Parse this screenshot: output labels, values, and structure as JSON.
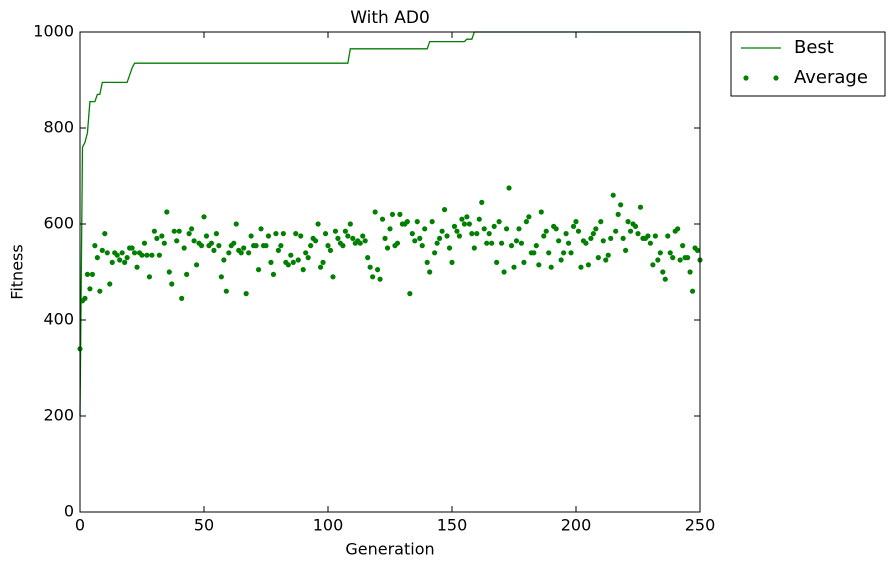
{
  "chart_data": {
    "type": "line",
    "title": "With AD0",
    "x_label": "Generation",
    "y_label": "Fitness",
    "xlim": [
      0,
      250
    ],
    "xticks": [
      0,
      50,
      100,
      150,
      200,
      250
    ],
    "ylim": [
      0,
      1000
    ],
    "yticks": [
      0,
      200,
      400,
      600,
      800,
      1000
    ],
    "grid": false,
    "legend": "outside-upper-right",
    "series": [
      {
        "name": "Best",
        "color": "#007f00",
        "style": "line",
        "x": [
          0,
          1,
          2,
          3,
          4,
          6,
          7,
          8,
          9,
          19,
          20,
          21,
          22,
          108,
          109,
          140,
          141,
          155,
          156,
          158,
          159,
          250
        ],
        "values": [
          200,
          760,
          770,
          790,
          855,
          855,
          870,
          870,
          895,
          895,
          910,
          925,
          935,
          935,
          965,
          965,
          980,
          980,
          985,
          985,
          1000,
          1000
        ]
      },
      {
        "name": "Average",
        "color": "#007f00",
        "style": "points",
        "x": [
          0,
          1,
          2,
          3,
          4,
          5,
          6,
          7,
          8,
          9,
          10,
          11,
          12,
          13,
          14,
          15,
          16,
          17,
          18,
          19,
          20,
          21,
          22,
          23,
          24,
          25,
          26,
          27,
          28,
          29,
          30,
          31,
          32,
          33,
          34,
          35,
          36,
          37,
          38,
          39,
          40,
          41,
          42,
          43,
          44,
          45,
          46,
          47,
          48,
          49,
          50,
          51,
          52,
          53,
          54,
          55,
          56,
          57,
          58,
          59,
          60,
          61,
          62,
          63,
          64,
          65,
          66,
          67,
          68,
          69,
          70,
          71,
          72,
          73,
          74,
          75,
          76,
          77,
          78,
          79,
          80,
          81,
          82,
          83,
          84,
          85,
          86,
          87,
          88,
          89,
          90,
          91,
          92,
          93,
          94,
          95,
          96,
          97,
          98,
          99,
          100,
          101,
          102,
          103,
          104,
          105,
          106,
          107,
          108,
          109,
          110,
          111,
          112,
          113,
          114,
          115,
          116,
          117,
          118,
          119,
          120,
          121,
          122,
          123,
          124,
          125,
          126,
          127,
          128,
          129,
          130,
          131,
          132,
          133,
          134,
          135,
          136,
          137,
          138,
          139,
          140,
          141,
          142,
          143,
          144,
          145,
          146,
          147,
          148,
          149,
          150,
          151,
          152,
          153,
          154,
          155,
          156,
          157,
          158,
          159,
          160,
          161,
          162,
          163,
          164,
          165,
          166,
          167,
          168,
          169,
          170,
          171,
          172,
          173,
          174,
          175,
          176,
          177,
          178,
          179,
          180,
          181,
          182,
          183,
          184,
          185,
          186,
          187,
          188,
          189,
          190,
          191,
          192,
          193,
          194,
          195,
          196,
          197,
          198,
          199,
          200,
          201,
          202,
          203,
          204,
          205,
          206,
          207,
          208,
          209,
          210,
          211,
          212,
          213,
          214,
          215,
          216,
          217,
          218,
          219,
          220,
          221,
          222,
          223,
          224,
          225,
          226,
          227,
          228,
          229,
          230,
          231,
          232,
          233,
          234,
          235,
          236,
          237,
          238,
          239,
          240,
          241,
          242,
          243,
          244,
          245,
          246,
          247,
          248,
          249,
          250
        ],
        "values": [
          340,
          440,
          445,
          495,
          465,
          495,
          555,
          530,
          460,
          545,
          580,
          540,
          475,
          520,
          540,
          535,
          525,
          540,
          520,
          530,
          550,
          550,
          540,
          510,
          540,
          535,
          560,
          535,
          490,
          535,
          585,
          570,
          535,
          575,
          560,
          625,
          500,
          475,
          585,
          565,
          585,
          445,
          550,
          495,
          580,
          590,
          565,
          515,
          560,
          555,
          615,
          575,
          555,
          560,
          545,
          580,
          555,
          490,
          525,
          460,
          540,
          555,
          560,
          600,
          545,
          540,
          550,
          455,
          540,
          575,
          555,
          555,
          505,
          590,
          555,
          555,
          575,
          520,
          495,
          580,
          545,
          555,
          580,
          520,
          515,
          535,
          520,
          580,
          525,
          575,
          505,
          540,
          530,
          555,
          570,
          565,
          600,
          510,
          520,
          580,
          555,
          545,
          490,
          585,
          570,
          560,
          555,
          585,
          575,
          600,
          570,
          560,
          565,
          560,
          575,
          565,
          530,
          510,
          490,
          625,
          505,
          485,
          610,
          570,
          550,
          590,
          620,
          555,
          560,
          620,
          600,
          600,
          605,
          455,
          580,
          565,
          605,
          570,
          555,
          590,
          520,
          500,
          605,
          540,
          560,
          570,
          585,
          630,
          575,
          550,
          520,
          595,
          585,
          575,
          610,
          600,
          615,
          600,
          580,
          550,
          580,
          610,
          645,
          590,
          560,
          580,
          560,
          595,
          520,
          605,
          560,
          500,
          590,
          675,
          555,
          510,
          565,
          590,
          560,
          520,
          605,
          615,
          540,
          540,
          555,
          515,
          625,
          575,
          585,
          540,
          510,
          595,
          590,
          565,
          525,
          540,
          580,
          560,
          540,
          595,
          605,
          585,
          510,
          565,
          560,
          515,
          570,
          580,
          590,
          530,
          605,
          565,
          525,
          535,
          570,
          660,
          585,
          620,
          640,
          570,
          545,
          605,
          585,
          600,
          595,
          580,
          635,
          570,
          570,
          575,
          560,
          515,
          575,
          525,
          540,
          500,
          485,
          575,
          540,
          530,
          585,
          590,
          525,
          555,
          530,
          530,
          500,
          460,
          550,
          545,
          525
        ]
      }
    ]
  }
}
